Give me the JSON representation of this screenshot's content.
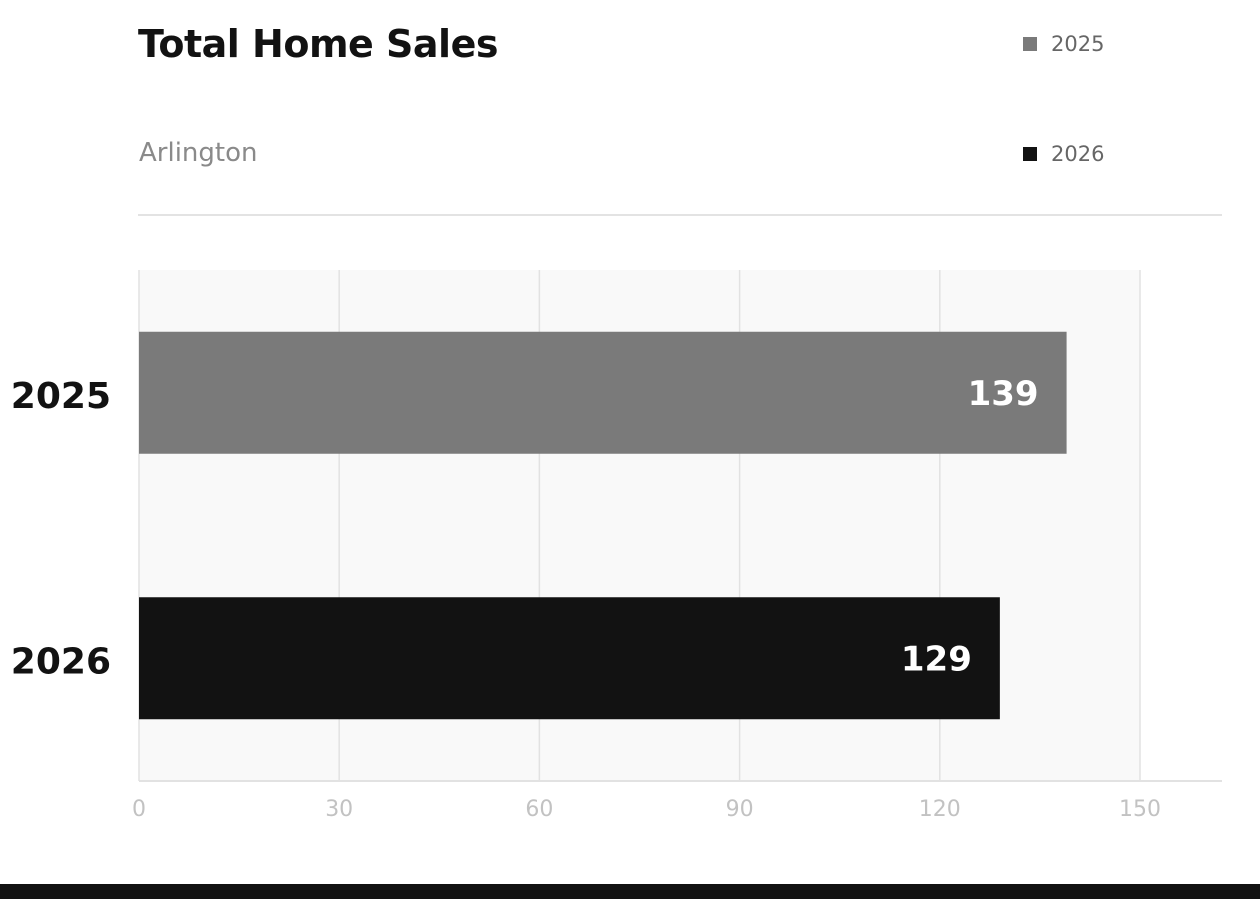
{
  "header": {
    "title": "Total Home Sales",
    "subtitle": "Arlington"
  },
  "legend": [
    {
      "label": "2025",
      "color": "#7a7a7a"
    },
    {
      "label": "2026",
      "color": "#121212"
    }
  ],
  "chart_data": {
    "type": "bar",
    "orientation": "horizontal",
    "title": "Total Home Sales",
    "subtitle": "Arlington",
    "categories": [
      "2025",
      "2026"
    ],
    "values": [
      139,
      129
    ],
    "colors": [
      "#7a7a7a",
      "#121212"
    ],
    "xlim": [
      0,
      150
    ],
    "xticks": [
      0,
      30,
      60,
      90,
      120,
      150
    ],
    "grid": true,
    "legend_position": "top-right",
    "data_labels": true
  }
}
